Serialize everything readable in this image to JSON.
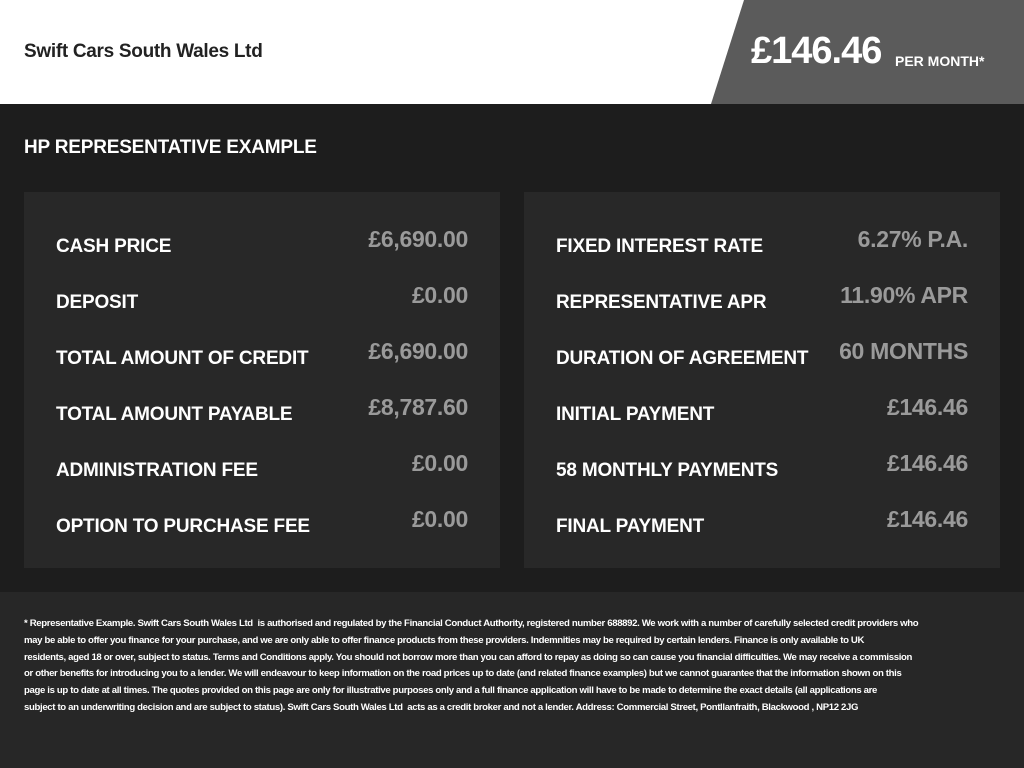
{
  "header": {
    "dealer": "Swift Cars South Wales Ltd",
    "price": "£146.46",
    "per_month": "PER MONTH*"
  },
  "section_title": "HP REPRESENTATIVE EXAMPLE",
  "left": [
    {
      "label": "CASH PRICE",
      "value": "£6,690.00"
    },
    {
      "label": "DEPOSIT",
      "value": "£0.00"
    },
    {
      "label": "TOTAL AMOUNT OF CREDIT",
      "value": "£6,690.00"
    },
    {
      "label": "TOTAL AMOUNT PAYABLE",
      "value": "£8,787.60"
    },
    {
      "label": "ADMINISTRATION FEE",
      "value": "£0.00"
    },
    {
      "label": "OPTION TO PURCHASE FEE",
      "value": "£0.00"
    }
  ],
  "right": [
    {
      "label": "FIXED INTEREST RATE",
      "value": "6.27% P.A."
    },
    {
      "label": "REPRESENTATIVE APR",
      "value": "11.90% APR"
    },
    {
      "label": "DURATION OF AGREEMENT",
      "value": "60 MONTHS"
    },
    {
      "label": "INITIAL PAYMENT",
      "value": "£146.46"
    },
    {
      "label": "58 MONTHLY PAYMENTS",
      "value": "£146.46"
    },
    {
      "label": "FINAL PAYMENT",
      "value": "£146.46"
    }
  ],
  "disclaimer_lines": [
    "* Representative Example. Swift Cars South Wales Ltd  is authorised and regulated by the Financial Conduct Authority, registered number 688892. We work with a number of carefully selected credit providers who",
    "may be able to offer you finance for your purchase, and we are only able to offer finance products from these providers. Indemnities may be required by certain lenders. Finance is only available to UK",
    "residents, aged 18 or over, subject to status. Terms and Conditions apply. You should not borrow more than you can afford to repay as doing so can cause you financial difficulties. We may receive a commission",
    "or other benefits for introducing you to a lender. We will endeavour to keep information on the road prices up to date (and related finance examples) but we cannot guarantee that the information shown on this",
    "page is up to date at all times. The quotes provided on this page are only for illustrative purposes only and a full finance application will have to be made to determine the exact details (all applications are",
    "subject to an underwriting decision and are subject to status). Swift Cars South Wales Ltd  acts as a credit broker and not a lender. Address: Commercial Street, Pontllanfraith, Blackwood , NP12 2JG"
  ]
}
